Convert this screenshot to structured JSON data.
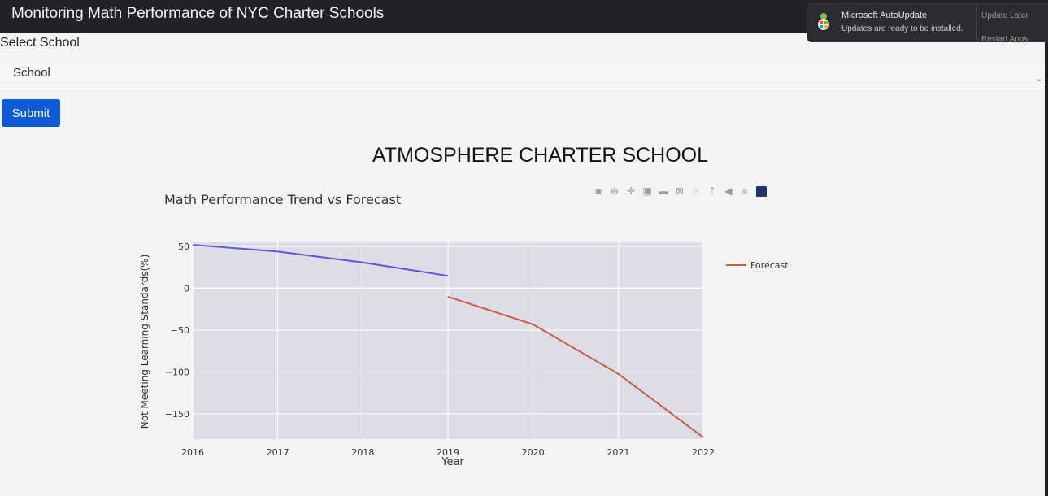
{
  "app": {
    "title": "Monitoring Math Performance of NYC Charter Schools"
  },
  "form": {
    "select_label": "Select School",
    "school_value": "School",
    "submit_label": "Submit"
  },
  "school_title": "ATMOSPHERE CHARTER SCHOOL",
  "notification": {
    "title": "Microsoft AutoUpdate",
    "body": "Updates are ready to be installed.",
    "update_later": "Update Later",
    "restart_apps": "Restart Apps"
  },
  "colors": {
    "submit": "#0d5bd8",
    "history": "#5a5ad6",
    "forecast": "#cc5a45",
    "plot_bg": "#dcdde6"
  },
  "chart_data": {
    "type": "line",
    "title": "Math Performance Trend vs Forecast",
    "xlabel": "Year",
    "ylabel": "Not Meeting Learning Standards(%)",
    "xlim": [
      2016,
      2022
    ],
    "ylim": [
      -180,
      55
    ],
    "x_ticks": [
      "2016",
      "2017",
      "2018",
      "2019",
      "2020",
      "2021",
      "2022"
    ],
    "y_ticks": [
      "50",
      "0",
      "−50",
      "−100",
      "−150"
    ],
    "y_tick_values": [
      50,
      0,
      -50,
      -100,
      -150
    ],
    "grid": true,
    "legend": "right",
    "series": [
      {
        "x": [
          2016,
          2017,
          2018,
          2019
        ],
        "values": [
          52,
          44,
          31,
          15
        ]
      },
      {
        "name": "Forecast",
        "x": [
          2019,
          2020,
          2021,
          2022
        ],
        "values": [
          -10,
          -43,
          -102,
          -178
        ]
      }
    ]
  }
}
